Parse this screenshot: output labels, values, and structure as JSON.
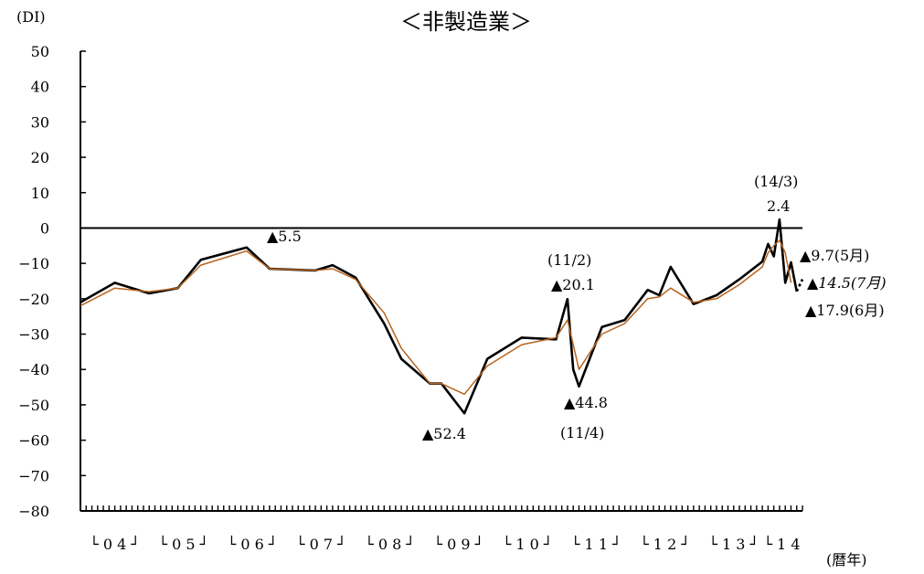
{
  "chart_data": {
    "type": "line",
    "title": "＜非製造業＞",
    "ylabel": "(DI)",
    "xlabel": "(暦年)",
    "ylim": [
      -80,
      50
    ],
    "yticks": [
      50,
      40,
      30,
      20,
      10,
      0,
      -10,
      -20,
      -30,
      -40,
      -50,
      -60,
      -70,
      -80
    ],
    "ytick_labels": [
      "50",
      "40",
      "30",
      "20",
      "10",
      "0",
      "−10",
      "−20",
      "−30",
      "−40",
      "−50",
      "−60",
      "−70",
      "−80"
    ],
    "x_start": "2004-01",
    "x_end": "2014-07",
    "year_labels": [
      "└ 0 4 ┘",
      "└ 0 5 ┘",
      "└ 0 6 ┘",
      "└ 0 7 ┘",
      "└ 0 8 ┘",
      "└ 0 9 ┘",
      "└ 1 0 ┘",
      "└ 1 1 ┘",
      "└ 1 2 ┘",
      "└ 1 3 ┘",
      "└ 1 4"
    ],
    "series": [
      {
        "style": "black-thick",
        "x": [
          "2004-01",
          "2004-07",
          "2005-01",
          "2005-06",
          "2005-10",
          "2006-06",
          "2006-10",
          "2007-06",
          "2007-09",
          "2008-01",
          "2008-06",
          "2008-09",
          "2009-02",
          "2009-04",
          "2009-08",
          "2009-12",
          "2010-06",
          "2010-12",
          "2011-02",
          "2011-03",
          "2011-04",
          "2011-08",
          "2011-12",
          "2012-04",
          "2012-06",
          "2012-08",
          "2012-12",
          "2013-04",
          "2013-08",
          "2013-12",
          "2014-01",
          "2014-02",
          "2014-03",
          "2014-04",
          "2014-05",
          "2014-06",
          "2014-07"
        ],
        "values": [
          -21,
          -15.5,
          -18.5,
          -17,
          -9,
          -5.5,
          -11.5,
          -12,
          -10.5,
          -14,
          -27,
          -37,
          -44,
          -44,
          -52.4,
          -37,
          -31,
          -31.5,
          -20.1,
          -40,
          -44.8,
          -28,
          -26,
          -17.5,
          -19,
          -11,
          -21.5,
          -19,
          -14.5,
          -9.5,
          -4.5,
          -8,
          2.4,
          -15.5,
          -9.7,
          -17.9,
          -14.5
        ]
      },
      {
        "style": "orange-thin",
        "x": [
          "2004-01",
          "2004-07",
          "2005-01",
          "2005-06",
          "2005-10",
          "2006-06",
          "2006-10",
          "2007-06",
          "2007-09",
          "2008-01",
          "2008-06",
          "2008-09",
          "2009-02",
          "2009-04",
          "2009-08",
          "2009-12",
          "2010-06",
          "2010-12",
          "2011-02",
          "2011-03",
          "2011-04",
          "2011-08",
          "2011-12",
          "2012-04",
          "2012-06",
          "2012-08",
          "2012-12",
          "2013-04",
          "2013-08",
          "2013-12",
          "2014-01",
          "2014-02",
          "2014-03",
          "2014-04",
          "2014-05"
        ],
        "values": [
          -22,
          -17,
          -18,
          -17,
          -10.5,
          -6.5,
          -11.5,
          -12,
          -11.5,
          -14.5,
          -24,
          -34,
          -44,
          -44,
          -47,
          -39,
          -33,
          -31,
          -26,
          -33,
          -40,
          -30,
          -27,
          -20,
          -19.5,
          -17,
          -21,
          -20,
          -16,
          -11,
          -7,
          -5,
          -3.5,
          -7,
          -15.5
        ]
      }
    ],
    "annotations": [
      {
        "x": "2006-06",
        "y": -5.5,
        "text": "▲5.5"
      },
      {
        "x": "2009-08",
        "y": -52.4,
        "text": "▲52.4"
      },
      {
        "x": "2011-02",
        "y": -20.1,
        "label": "(11/2)",
        "text": "▲20.1"
      },
      {
        "x": "2011-04",
        "y": -44.8,
        "label": "(11/4)",
        "text": "▲44.8"
      },
      {
        "x": "2014-03",
        "y": 2.4,
        "label": "(14/3)",
        "text": "2.4"
      },
      {
        "x": "2014-05",
        "y": -9.7,
        "text": "▲9.7(5月)"
      },
      {
        "x": "2014-07",
        "y": -14.5,
        "text": "▲14.5(7月)",
        "italic": true
      },
      {
        "x": "2014-06",
        "y": -17.9,
        "text": "▲17.9(6月)"
      }
    ]
  }
}
